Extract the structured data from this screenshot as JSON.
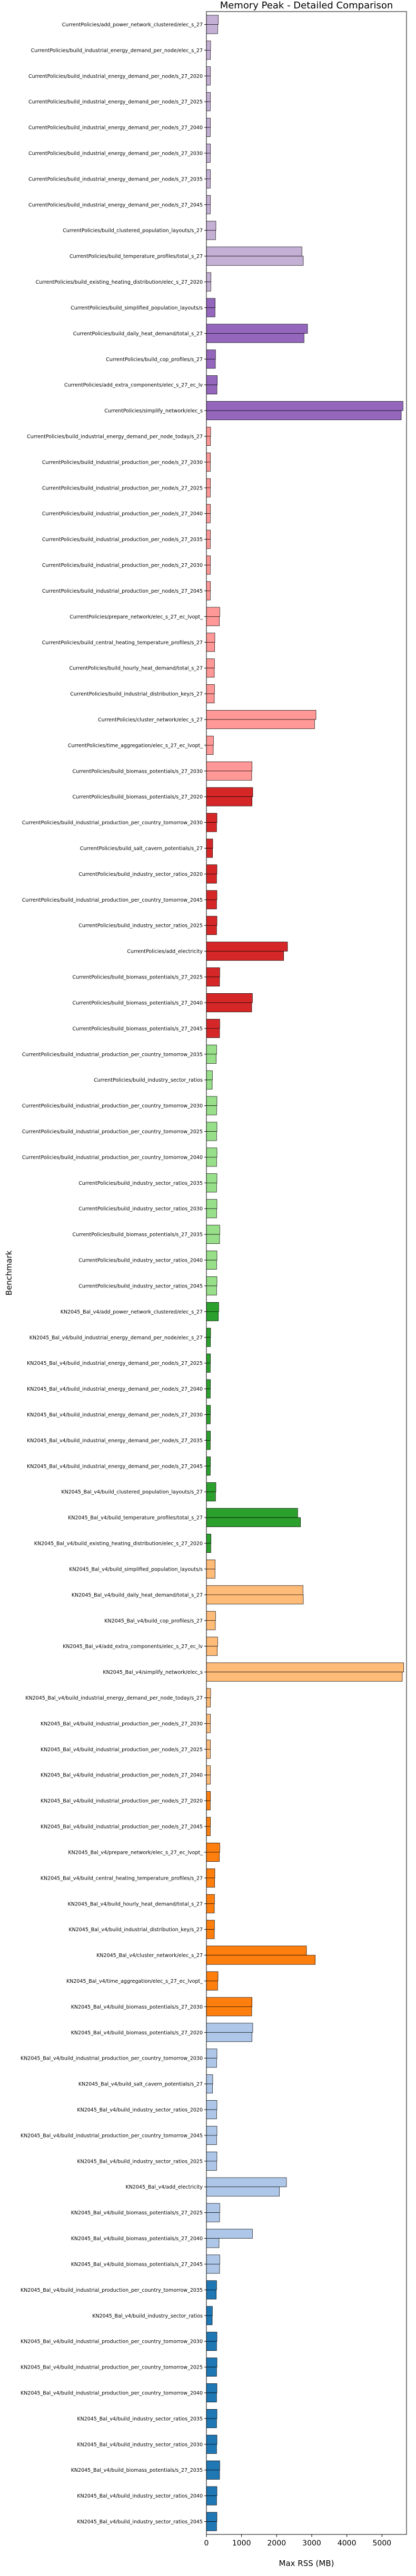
{
  "chart_data": {
    "type": "bar",
    "orientation": "horizontal",
    "title": "Memory Peak - Detailed Comparison",
    "xlabel": "Max RSS (MB)",
    "ylabel": "Benchmark",
    "xlim": [
      0,
      5700
    ],
    "xticks": [
      0,
      1000,
      2000,
      3000,
      4000,
      5000
    ],
    "grid": false,
    "legend": "none",
    "colors": {
      "KN2045_dark_blue": "#1f77b4",
      "KN2045_light_blue": "#aec7e8",
      "KN2045_dark_orange": "#ff7f0e",
      "KN2045_light_orange": "#ffbb78",
      "KN2045_dark_green": "#2ca02c",
      "KN2045_light_green": "#98df8a",
      "CurrentPolicies_dark_red": "#d62728",
      "CurrentPolicies_light_red": "#ff9896",
      "CurrentPolicies_dark_purple": "#9467bd",
      "CurrentPolicies_light_purple": "#c5b0d5"
    },
    "rows": [
      {
        "label": "CurrentPolicies/add_power_network_clustered/elec_s_27",
        "color": "#c5b0d5",
        "values": [
          340,
          320
        ]
      },
      {
        "label": "CurrentPolicies/build_industrial_energy_demand_per_node/elec_s_27",
        "color": "#c5b0d5",
        "values": [
          120,
          115
        ]
      },
      {
        "label": "CurrentPolicies/build_industrial_energy_demand_per_node/s_27_2020",
        "color": "#c5b0d5",
        "values": [
          115,
          110
        ]
      },
      {
        "label": "CurrentPolicies/build_industrial_energy_demand_per_node/s_27_2025",
        "color": "#c5b0d5",
        "values": [
          115,
          110
        ]
      },
      {
        "label": "CurrentPolicies/build_industrial_energy_demand_per_node/s_27_2040",
        "color": "#c5b0d5",
        "values": [
          115,
          110
        ]
      },
      {
        "label": "CurrentPolicies/build_industrial_energy_demand_per_node/s_27_2030",
        "color": "#c5b0d5",
        "values": [
          115,
          110
        ]
      },
      {
        "label": "CurrentPolicies/build_industrial_energy_demand_per_node/s_27_2035",
        "color": "#c5b0d5",
        "values": [
          115,
          110
        ]
      },
      {
        "label": "CurrentPolicies/build_industrial_energy_demand_per_node/s_27_2045",
        "color": "#c5b0d5",
        "values": [
          115,
          110
        ]
      },
      {
        "label": "CurrentPolicies/build_clustered_population_layouts/s_27",
        "color": "#c5b0d5",
        "values": [
          270,
          260
        ]
      },
      {
        "label": "CurrentPolicies/build_temperature_profiles/total_s_27",
        "color": "#c5b0d5",
        "values": [
          2720,
          2760
        ]
      },
      {
        "label": "CurrentPolicies/build_existing_heating_distribution/elec_s_27_2020",
        "color": "#c5b0d5",
        "values": [
          130,
          125
        ]
      },
      {
        "label": "CurrentPolicies/build_simplified_population_layouts/s",
        "color": "#9467bd",
        "values": [
          250,
          245
        ]
      },
      {
        "label": "CurrentPolicies/build_daily_heat_demand/total_s_27",
        "color": "#9467bd",
        "values": [
          2880,
          2780
        ]
      },
      {
        "label": "CurrentPolicies/build_cop_profiles/s_27",
        "color": "#9467bd",
        "values": [
          260,
          255
        ]
      },
      {
        "label": "CurrentPolicies/add_extra_components/elec_s_27_ec_lv",
        "color": "#9467bd",
        "values": [
          310,
          300
        ]
      },
      {
        "label": "CurrentPolicies/simplify_network/elec_s",
        "color": "#9467bd",
        "values": [
          5600,
          5550
        ]
      },
      {
        "label": "CurrentPolicies/build_industrial_energy_demand_per_node_today/s_27",
        "color": "#ff9896",
        "values": [
          120,
          115
        ]
      },
      {
        "label": "CurrentPolicies/build_industrial_production_per_node/s_27_2030",
        "color": "#ff9896",
        "values": [
          115,
          110
        ]
      },
      {
        "label": "CurrentPolicies/build_industrial_production_per_node/s_27_2025",
        "color": "#ff9896",
        "values": [
          115,
          110
        ]
      },
      {
        "label": "CurrentPolicies/build_industrial_production_per_node/s_27_2040",
        "color": "#ff9896",
        "values": [
          115,
          110
        ]
      },
      {
        "label": "CurrentPolicies/build_industrial_production_per_node/s_27_2035",
        "color": "#ff9896",
        "values": [
          115,
          110
        ]
      },
      {
        "label": "CurrentPolicies/build_industrial_production_per_node/s_27_2030",
        "color": "#ff9896",
        "values": [
          115,
          110
        ]
      },
      {
        "label": "CurrentPolicies/build_industrial_production_per_node/s_27_2045",
        "color": "#ff9896",
        "values": [
          115,
          110
        ]
      },
      {
        "label": "CurrentPolicies/prepare_network/elec_s_27_ec_lvopt_",
        "color": "#ff9896",
        "values": [
          380,
          370
        ]
      },
      {
        "label": "CurrentPolicies/build_central_heating_temperature_profiles/s_27",
        "color": "#ff9896",
        "values": [
          240,
          235
        ]
      },
      {
        "label": "CurrentPolicies/build_hourly_heat_demand/total_s_27",
        "color": "#ff9896",
        "values": [
          230,
          225
        ]
      },
      {
        "label": "CurrentPolicies/build_industrial_distribution_key/s_27",
        "color": "#ff9896",
        "values": [
          230,
          225
        ]
      },
      {
        "label": "CurrentPolicies/cluster_network/elec_s_27",
        "color": "#ff9896",
        "values": [
          3120,
          3080
        ]
      },
      {
        "label": "CurrentPolicies/time_aggregation/elec_s_27_ec_lvopt_",
        "color": "#ff9896",
        "values": [
          200,
          195
        ]
      },
      {
        "label": "CurrentPolicies/build_biomass_potentials/s_27_2030",
        "color": "#ff9896",
        "values": [
          1300,
          1290
        ]
      },
      {
        "label": "CurrentPolicies/build_biomass_potentials/s_27_2020",
        "color": "#d62728",
        "values": [
          1320,
          1300
        ]
      },
      {
        "label": "CurrentPolicies/build_industrial_production_per_country_tomorrow_2030",
        "color": "#d62728",
        "values": [
          300,
          290
        ]
      },
      {
        "label": "CurrentPolicies/build_salt_cavern_potentials/s_27",
        "color": "#d62728",
        "values": [
          180,
          175
        ]
      },
      {
        "label": "CurrentPolicies/build_industry_sector_ratios_2020",
        "color": "#d62728",
        "values": [
          300,
          290
        ]
      },
      {
        "label": "CurrentPolicies/build_industrial_production_per_country_tomorrow_2045",
        "color": "#d62728",
        "values": [
          300,
          290
        ]
      },
      {
        "label": "CurrentPolicies/build_industry_sector_ratios_2025",
        "color": "#d62728",
        "values": [
          300,
          290
        ]
      },
      {
        "label": "CurrentPolicies/add_electricity",
        "color": "#d62728",
        "values": [
          2310,
          2200
        ]
      },
      {
        "label": "CurrentPolicies/build_biomass_potentials/s_27_2025",
        "color": "#d62728",
        "values": [
          380,
          375
        ]
      },
      {
        "label": "CurrentPolicies/build_biomass_potentials/s_27_2040",
        "color": "#d62728",
        "values": [
          1310,
          1290
        ]
      },
      {
        "label": "CurrentPolicies/build_biomass_potentials/s_27_2045",
        "color": "#d62728",
        "values": [
          380,
          375
        ]
      },
      {
        "label": "CurrentPolicies/build_industrial_production_per_country_tomorrow_2035",
        "color": "#98df8a",
        "values": [
          290,
          280
        ]
      },
      {
        "label": "CurrentPolicies/build_industry_sector_ratios",
        "color": "#98df8a",
        "values": [
          170,
          165
        ]
      },
      {
        "label": "CurrentPolicies/build_industrial_production_per_country_tomorrow_2030",
        "color": "#98df8a",
        "values": [
          300,
          290
        ]
      },
      {
        "label": "CurrentPolicies/build_industrial_production_per_country_tomorrow_2025",
        "color": "#98df8a",
        "values": [
          300,
          290
        ]
      },
      {
        "label": "CurrentPolicies/build_industrial_production_per_country_tomorrow_2040",
        "color": "#98df8a",
        "values": [
          300,
          290
        ]
      },
      {
        "label": "CurrentPolicies/build_industry_sector_ratios_2035",
        "color": "#98df8a",
        "values": [
          300,
          290
        ]
      },
      {
        "label": "CurrentPolicies/build_industry_sector_ratios_2030",
        "color": "#98df8a",
        "values": [
          300,
          290
        ]
      },
      {
        "label": "CurrentPolicies/build_biomass_potentials/s_27_2035",
        "color": "#98df8a",
        "values": [
          380,
          375
        ]
      },
      {
        "label": "CurrentPolicies/build_industry_sector_ratios_2040",
        "color": "#98df8a",
        "values": [
          300,
          290
        ]
      },
      {
        "label": "CurrentPolicies/build_industry_sector_ratios_2045",
        "color": "#98df8a",
        "values": [
          300,
          290
        ]
      },
      {
        "label": "KN2045_Bal_v4/add_power_network_clustered/elec_s_27",
        "color": "#2ca02c",
        "values": [
          350,
          340
        ]
      },
      {
        "label": "KN2045_Bal_v4/build_industrial_energy_demand_per_node/elec_s_27",
        "color": "#2ca02c",
        "values": [
          120,
          115
        ]
      },
      {
        "label": "KN2045_Bal_v4/build_industrial_energy_demand_per_node/s_27_2025",
        "color": "#2ca02c",
        "values": [
          115,
          110
        ]
      },
      {
        "label": "KN2045_Bal_v4/build_industrial_energy_demand_per_node/s_27_2040",
        "color": "#2ca02c",
        "values": [
          115,
          110
        ]
      },
      {
        "label": "KN2045_Bal_v4/build_industrial_energy_demand_per_node/s_27_2030",
        "color": "#2ca02c",
        "values": [
          115,
          110
        ]
      },
      {
        "label": "KN2045_Bal_v4/build_industrial_energy_demand_per_node/s_27_2035",
        "color": "#2ca02c",
        "values": [
          115,
          110
        ]
      },
      {
        "label": "KN2045_Bal_v4/build_industrial_energy_demand_per_node/s_27_2045",
        "color": "#2ca02c",
        "values": [
          115,
          110
        ]
      },
      {
        "label": "KN2045_Bal_v4/build_clustered_population_layouts/s_27",
        "color": "#2ca02c",
        "values": [
          270,
          260
        ]
      },
      {
        "label": "KN2045_Bal_v4/build_temperature_profiles/total_s_27",
        "color": "#2ca02c",
        "values": [
          2600,
          2680
        ]
      },
      {
        "label": "KN2045_Bal_v4/build_existing_heating_distribution/elec_s_27_2020",
        "color": "#2ca02c",
        "values": [
          130,
          125
        ]
      },
      {
        "label": "KN2045_Bal_v4/build_simplified_population_layouts/s",
        "color": "#ffbb78",
        "values": [
          250,
          245
        ]
      },
      {
        "label": "KN2045_Bal_v4/build_daily_heat_demand/total_s_27",
        "color": "#ffbb78",
        "values": [
          2750,
          2760
        ]
      },
      {
        "label": "KN2045_Bal_v4/build_cop_profiles/s_27",
        "color": "#ffbb78",
        "values": [
          260,
          255
        ]
      },
      {
        "label": "KN2045_Bal_v4/add_extra_components/elec_s_27_ec_lv",
        "color": "#ffbb78",
        "values": [
          320,
          310
        ]
      },
      {
        "label": "KN2045_Bal_v4/simplify_network/elec_s",
        "color": "#ffbb78",
        "values": [
          5620,
          5580
        ]
      },
      {
        "label": "KN2045_Bal_v4/build_industrial_energy_demand_per_node_today/s_27",
        "color": "#ffbb78",
        "values": [
          120,
          115
        ]
      },
      {
        "label": "KN2045_Bal_v4/build_industrial_production_per_node/s_27_2030",
        "color": "#ffbb78",
        "values": [
          115,
          110
        ]
      },
      {
        "label": "KN2045_Bal_v4/build_industrial_production_per_node/s_27_2025",
        "color": "#ffbb78",
        "values": [
          115,
          110
        ]
      },
      {
        "label": "KN2045_Bal_v4/build_industrial_production_per_node/s_27_2040",
        "color": "#ffbb78",
        "values": [
          115,
          110
        ]
      },
      {
        "label": "KN2045_Bal_v4/build_industrial_production_per_node/s_27_2020",
        "color": "#ff7f0e",
        "values": [
          115,
          110
        ]
      },
      {
        "label": "KN2045_Bal_v4/build_industrial_production_per_node/s_27_2045",
        "color": "#ff7f0e",
        "values": [
          115,
          110
        ]
      },
      {
        "label": "KN2045_Bal_v4/prepare_network/elec_s_27_ec_lvopt_",
        "color": "#ff7f0e",
        "values": [
          380,
          370
        ]
      },
      {
        "label": "KN2045_Bal_v4/build_central_heating_temperature_profiles/s_27",
        "color": "#ff7f0e",
        "values": [
          240,
          235
        ]
      },
      {
        "label": "KN2045_Bal_v4/build_hourly_heat_demand/total_s_27",
        "color": "#ff7f0e",
        "values": [
          230,
          225
        ]
      },
      {
        "label": "KN2045_Bal_v4/build_industrial_distribution_key/s_27",
        "color": "#ff7f0e",
        "values": [
          230,
          225
        ]
      },
      {
        "label": "KN2045_Bal_v4/cluster_network/elec_s_27",
        "color": "#ff7f0e",
        "values": [
          2850,
          3100
        ]
      },
      {
        "label": "KN2045_Bal_v4/time_aggregation/elec_s_27_ec_lvopt_",
        "color": "#ff7f0e",
        "values": [
          330,
          320
        ]
      },
      {
        "label": "KN2045_Bal_v4/build_biomass_potentials/s_27_2030",
        "color": "#ff7f0e",
        "values": [
          1300,
          1290
        ]
      },
      {
        "label": "KN2045_Bal_v4/build_biomass_potentials/s_27_2020",
        "color": "#aec7e8",
        "values": [
          1320,
          1300
        ]
      },
      {
        "label": "KN2045_Bal_v4/build_industrial_production_per_country_tomorrow_2030",
        "color": "#aec7e8",
        "values": [
          300,
          290
        ]
      },
      {
        "label": "KN2045_Bal_v4/build_salt_cavern_potentials/s_27",
        "color": "#aec7e8",
        "values": [
          180,
          175
        ]
      },
      {
        "label": "KN2045_Bal_v4/build_industry_sector_ratios_2020",
        "color": "#aec7e8",
        "values": [
          300,
          290
        ]
      },
      {
        "label": "KN2045_Bal_v4/build_industrial_production_per_country_tomorrow_2045",
        "color": "#aec7e8",
        "values": [
          300,
          290
        ]
      },
      {
        "label": "KN2045_Bal_v4/build_industry_sector_ratios_2025",
        "color": "#aec7e8",
        "values": [
          300,
          290
        ]
      },
      {
        "label": "KN2045_Bal_v4/add_electricity",
        "color": "#aec7e8",
        "values": [
          2280,
          2080
        ]
      },
      {
        "label": "KN2045_Bal_v4/build_biomass_potentials/s_27_2025",
        "color": "#aec7e8",
        "values": [
          380,
          375
        ]
      },
      {
        "label": "KN2045_Bal_v4/build_biomass_potentials/s_27_2040",
        "color": "#aec7e8",
        "values": [
          1310,
          360
        ]
      },
      {
        "label": "KN2045_Bal_v4/build_biomass_potentials/s_27_2045",
        "color": "#aec7e8",
        "values": [
          380,
          375
        ]
      },
      {
        "label": "KN2045_Bal_v4/build_industrial_production_per_country_tomorrow_2035",
        "color": "#1f77b4",
        "values": [
          290,
          280
        ]
      },
      {
        "label": "KN2045_Bal_v4/build_industry_sector_ratios",
        "color": "#1f77b4",
        "values": [
          170,
          165
        ]
      },
      {
        "label": "KN2045_Bal_v4/build_industrial_production_per_country_tomorrow_2030",
        "color": "#1f77b4",
        "values": [
          300,
          290
        ]
      },
      {
        "label": "KN2045_Bal_v4/build_industrial_production_per_country_tomorrow_2025",
        "color": "#1f77b4",
        "values": [
          300,
          290
        ]
      },
      {
        "label": "KN2045_Bal_v4/build_industrial_production_per_country_tomorrow_2040",
        "color": "#1f77b4",
        "values": [
          300,
          290
        ]
      },
      {
        "label": "KN2045_Bal_v4/build_industry_sector_ratios_2035",
        "color": "#1f77b4",
        "values": [
          300,
          290
        ]
      },
      {
        "label": "KN2045_Bal_v4/build_industry_sector_ratios_2030",
        "color": "#1f77b4",
        "values": [
          300,
          290
        ]
      },
      {
        "label": "KN2045_Bal_v4/build_biomass_potentials/s_27_2035",
        "color": "#1f77b4",
        "values": [
          380,
          375
        ]
      },
      {
        "label": "KN2045_Bal_v4/build_industry_sector_ratios_2040",
        "color": "#1f77b4",
        "values": [
          300,
          290
        ]
      },
      {
        "label": "KN2045_Bal_v4/build_industry_sector_ratios_2045",
        "color": "#1f77b4",
        "values": [
          300,
          290
        ]
      }
    ]
  }
}
